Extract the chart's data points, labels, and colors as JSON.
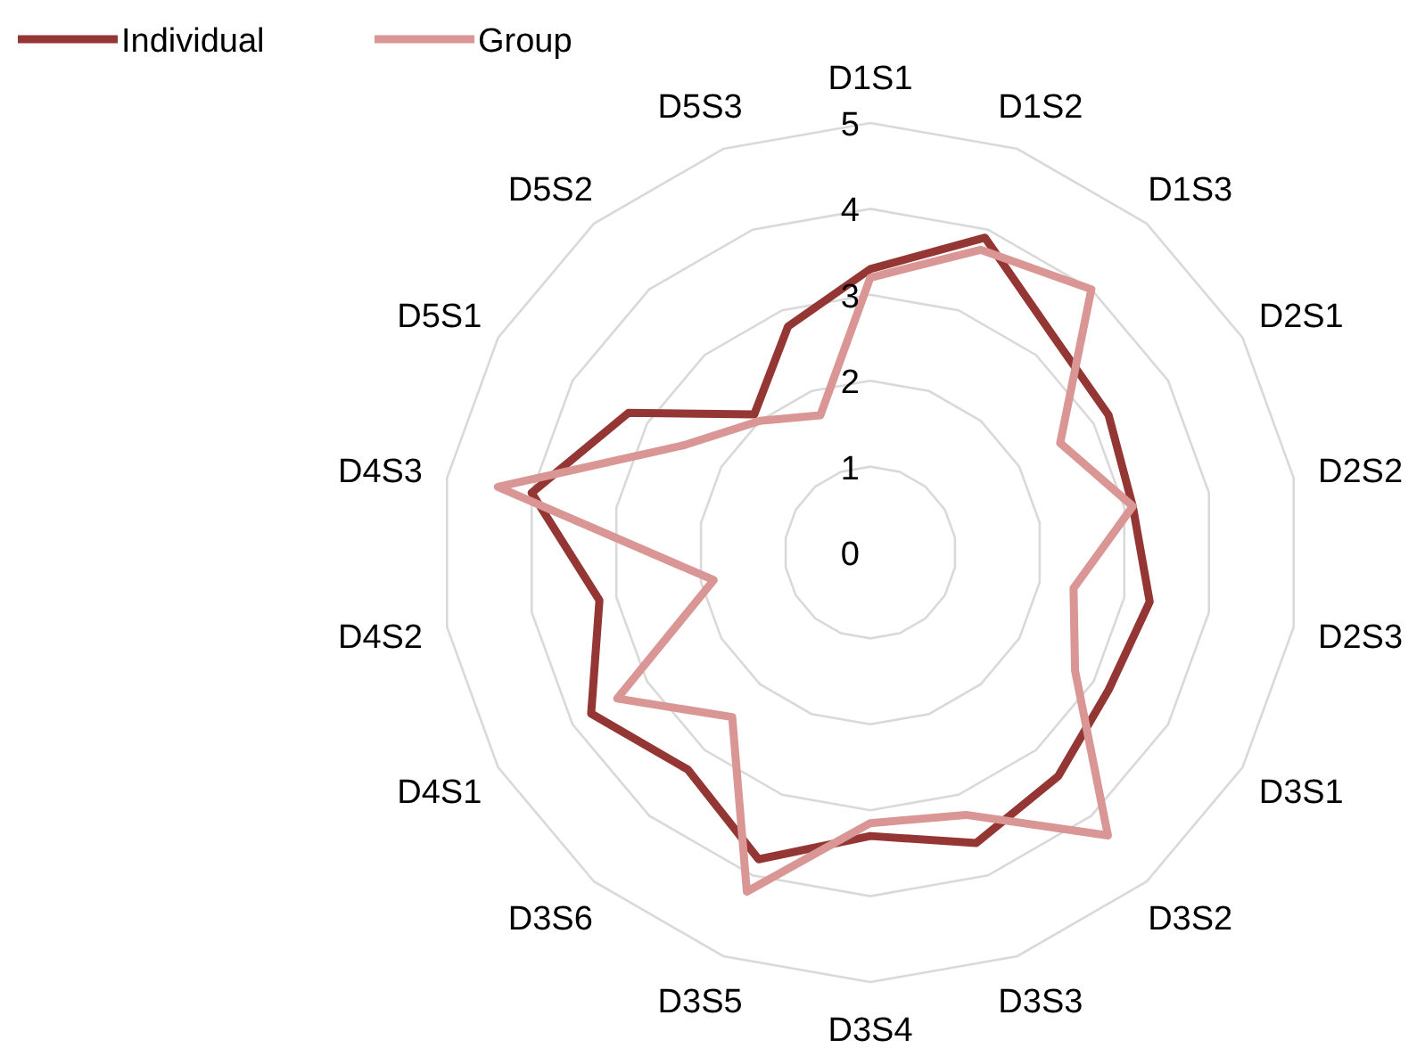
{
  "chart_data": {
    "type": "radar",
    "categories": [
      "D1S1",
      "D1S2",
      "D1S3",
      "D2S1",
      "D2S2",
      "D2S3",
      "D3S1",
      "D3S2",
      "D3S3",
      "D3S4",
      "D3S5",
      "D3S6",
      "D4S1",
      "D4S2",
      "D4S3",
      "D5S1",
      "D5S2",
      "D5S3"
    ],
    "series": [
      {
        "name": "Individual",
        "color": "#943634",
        "values": [
          3.3,
          3.9,
          3.3,
          3.2,
          3.1,
          3.3,
          3.2,
          3.4,
          3.6,
          3.3,
          3.8,
          3.3,
          3.75,
          3.2,
          4.0,
          3.25,
          2.1,
          2.8
        ]
      },
      {
        "name": "Group",
        "color": "#d99694",
        "values": [
          3.2,
          3.75,
          4.0,
          2.55,
          3.1,
          2.4,
          2.75,
          4.3,
          3.25,
          3.15,
          4.2,
          2.5,
          3.4,
          1.85,
          4.4,
          2.5,
          2.0,
          1.7
        ]
      }
    ],
    "ylim": [
      0,
      5
    ],
    "yticks": [
      0,
      1,
      2,
      3,
      4,
      5
    ],
    "grid": true,
    "legend": "top left"
  }
}
